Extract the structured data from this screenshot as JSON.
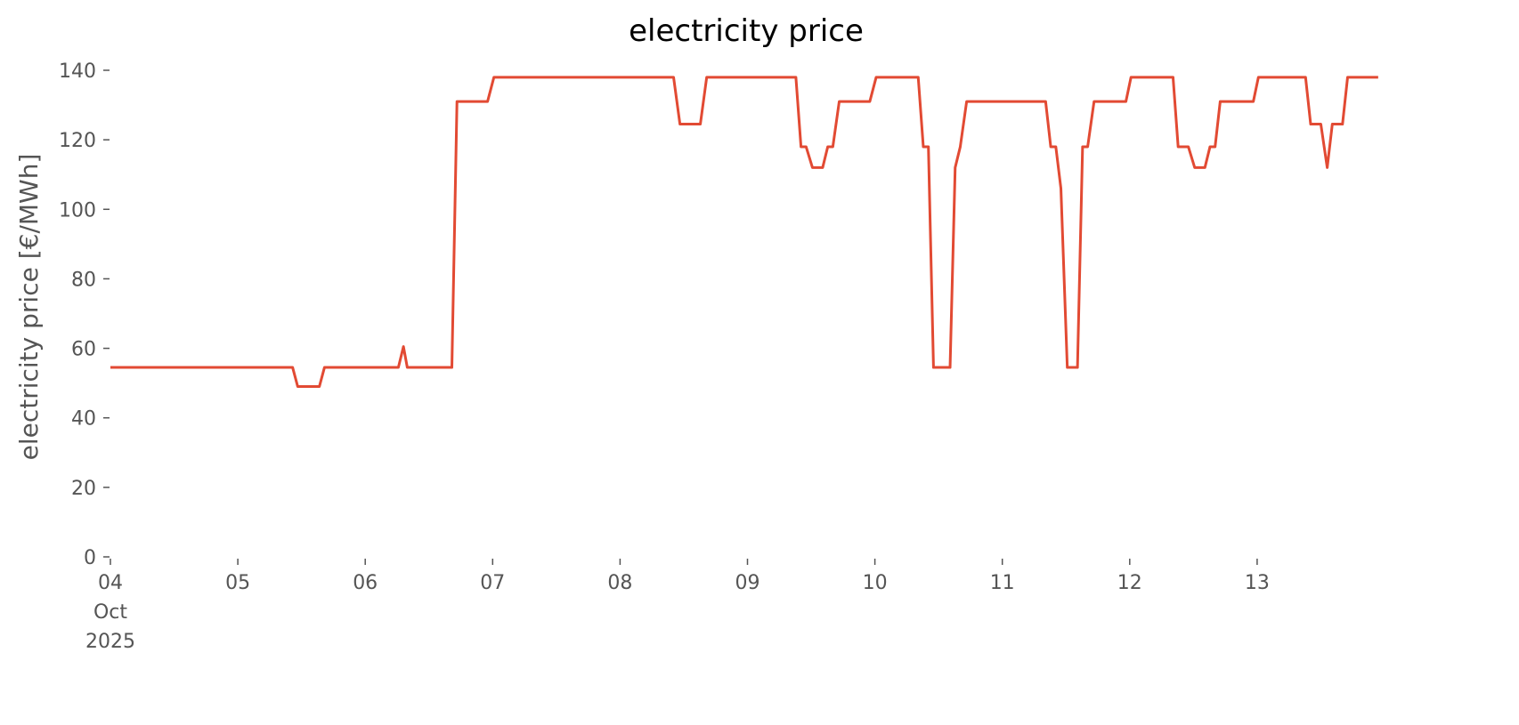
{
  "chart_data": {
    "type": "line",
    "title": "electricity price",
    "ylabel": "electricity price [€/MWh]",
    "x": [
      4,
      5.43,
      5.47,
      5.64,
      5.68,
      6.26,
      6.3,
      6.33,
      6.68,
      6.72,
      6.96,
      7.01,
      8.42,
      8.47,
      8.63,
      8.68,
      9.38,
      9.42,
      9.46,
      9.51,
      9.59,
      9.63,
      9.67,
      9.72,
      9.96,
      10.01,
      10.34,
      10.38,
      10.42,
      10.46,
      10.59,
      10.63,
      10.67,
      10.72,
      11.34,
      11.38,
      11.42,
      11.46,
      11.51,
      11.59,
      11.63,
      11.67,
      11.72,
      11.97,
      12.01,
      12.34,
      12.38,
      12.46,
      12.51,
      12.59,
      12.63,
      12.67,
      12.71,
      12.97,
      13.01,
      13.38,
      13.42,
      13.5,
      13.55,
      13.59,
      13.67,
      13.71,
      13.95
    ],
    "series": [
      {
        "name": "electricity price",
        "color": "#e24a33",
        "values": [
          54.5,
          54.5,
          49,
          49,
          54.5,
          54.5,
          60.5,
          54.5,
          54.5,
          131,
          131,
          138,
          138,
          124.5,
          124.5,
          138,
          138,
          118,
          118,
          112,
          112,
          118,
          118,
          131,
          131,
          138,
          138,
          118,
          118,
          54.5,
          54.5,
          112,
          118,
          131,
          131,
          118,
          118,
          106,
          54.5,
          54.5,
          118,
          118,
          131,
          131,
          138,
          138,
          118,
          118,
          112,
          112,
          118,
          118,
          131,
          131,
          138,
          138,
          124.5,
          124.5,
          112,
          124.5,
          124.5,
          138,
          138
        ]
      }
    ],
    "xlim": [
      4,
      14
    ],
    "ylim": [
      0,
      140
    ],
    "xticks": [
      {
        "value": 4,
        "label": "04\nOct\n2025"
      },
      {
        "value": 5,
        "label": "05"
      },
      {
        "value": 6,
        "label": "06"
      },
      {
        "value": 7,
        "label": "07"
      },
      {
        "value": 8,
        "label": "08"
      },
      {
        "value": 9,
        "label": "09"
      },
      {
        "value": 10,
        "label": "10"
      },
      {
        "value": 11,
        "label": "11"
      },
      {
        "value": 12,
        "label": "12"
      },
      {
        "value": 13,
        "label": "13"
      }
    ],
    "yticks": [
      0,
      20,
      40,
      60,
      80,
      100,
      120,
      140
    ],
    "grid": false
  }
}
